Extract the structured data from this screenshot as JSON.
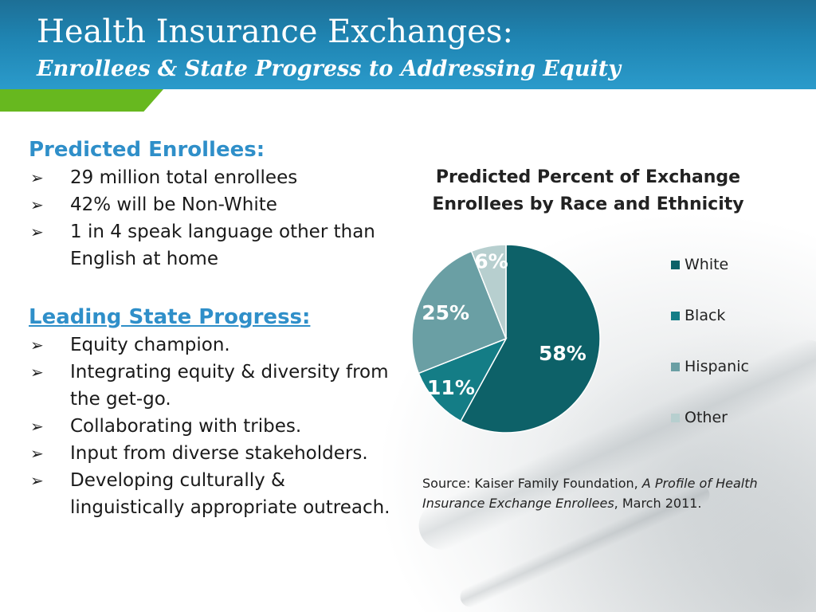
{
  "header": {
    "title": "Health Insurance Exchanges:",
    "subtitle": "Enrollees & State Progress to Addressing Equity"
  },
  "predicted": {
    "heading": "Predicted Enrollees:",
    "items": [
      "29 million total enrollees",
      "42% will be Non-White",
      "1 in 4 speak language other than English at home"
    ]
  },
  "leading": {
    "heading": "Leading State Progress:",
    "items": [
      "Equity champion.",
      "Integrating equity & diversity from the get-go.",
      "Collaborating with tribes.",
      "Input from diverse stakeholders.",
      "Developing culturally & linguistically appropriate outreach."
    ]
  },
  "bullet_icon": "arrow-bullet-icon",
  "chart_data": {
    "type": "pie",
    "title": "Predicted Percent of Exchange Enrollees by Race and Ethnicity",
    "categories": [
      "White",
      "Black",
      "Hispanic",
      "Other"
    ],
    "values": [
      58,
      11,
      25,
      6
    ],
    "labels": [
      "58%",
      "11%",
      "25%",
      "6%"
    ],
    "colors": [
      "#0d6168",
      "#147d86",
      "#6a9fa4",
      "#b7cfcf"
    ],
    "legend": "right"
  },
  "source": {
    "prefix": "Source: Kaiser Family Foundation, ",
    "title": "A Profile of Health Insurance Exchange Enrollees",
    "suffix": ", March 2011."
  },
  "colors": {
    "header": "#1f85b3",
    "accent_green": "#67b81f",
    "heading_blue": "#2f8fc9"
  }
}
